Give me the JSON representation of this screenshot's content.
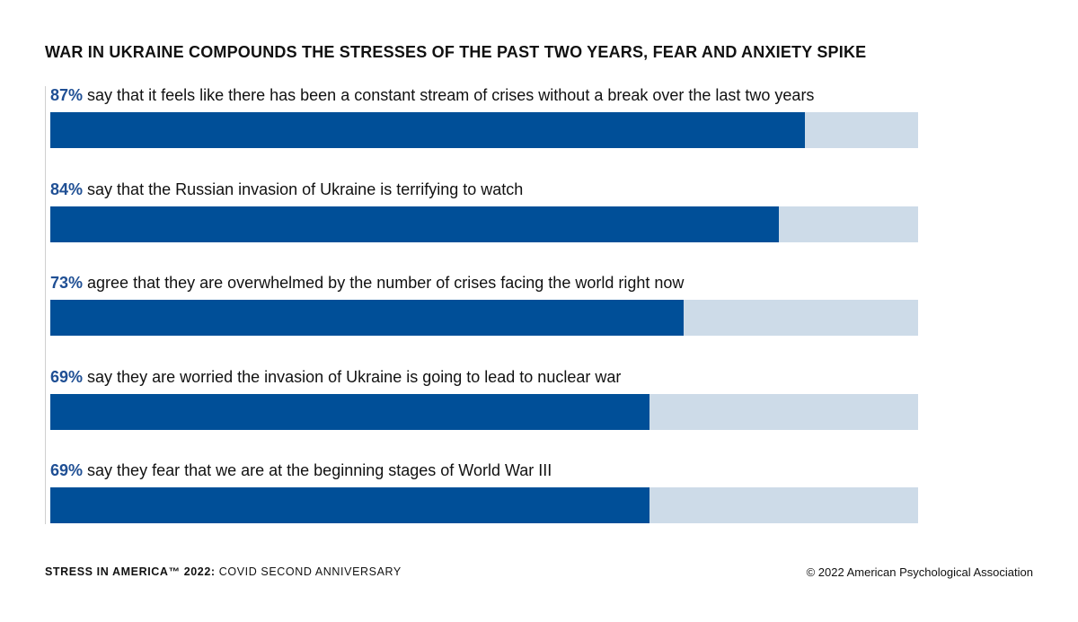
{
  "chart_data": {
    "type": "bar",
    "orientation": "horizontal",
    "title": "WAR IN UKRAINE COMPOUNDS THE STRESSES OF THE PAST TWO YEARS, FEAR AND ANXIETY SPIKE",
    "xlim": [
      0,
      100
    ],
    "grid": false,
    "colors": {
      "fill": "#004f98",
      "track": "#cddbe8",
      "percent_text": "#1f4f94"
    },
    "items": [
      {
        "percent_label": "87%",
        "value": 87,
        "text": " say that it feels like there has been a constant stream of crises without a break over the last two years"
      },
      {
        "percent_label": "84%",
        "value": 84,
        "text": " say that the Russian invasion of Ukraine is terrifying to watch"
      },
      {
        "percent_label": "73%",
        "value": 73,
        "text": " agree that they are overwhelmed by the number of crises facing the world right now"
      },
      {
        "percent_label": "69%",
        "value": 69,
        "text": " say they are worried the invasion of Ukraine is going to lead to nuclear war"
      },
      {
        "percent_label": "69%",
        "value": 69,
        "text": " say they fear that we are at the beginning stages of World War III"
      }
    ]
  },
  "footer": {
    "left_bold": "STRESS IN AMERICA™ 2022:",
    "left_regular": " COVID SECOND ANNIVERSARY",
    "right": "© 2022 American Psychological Association"
  }
}
